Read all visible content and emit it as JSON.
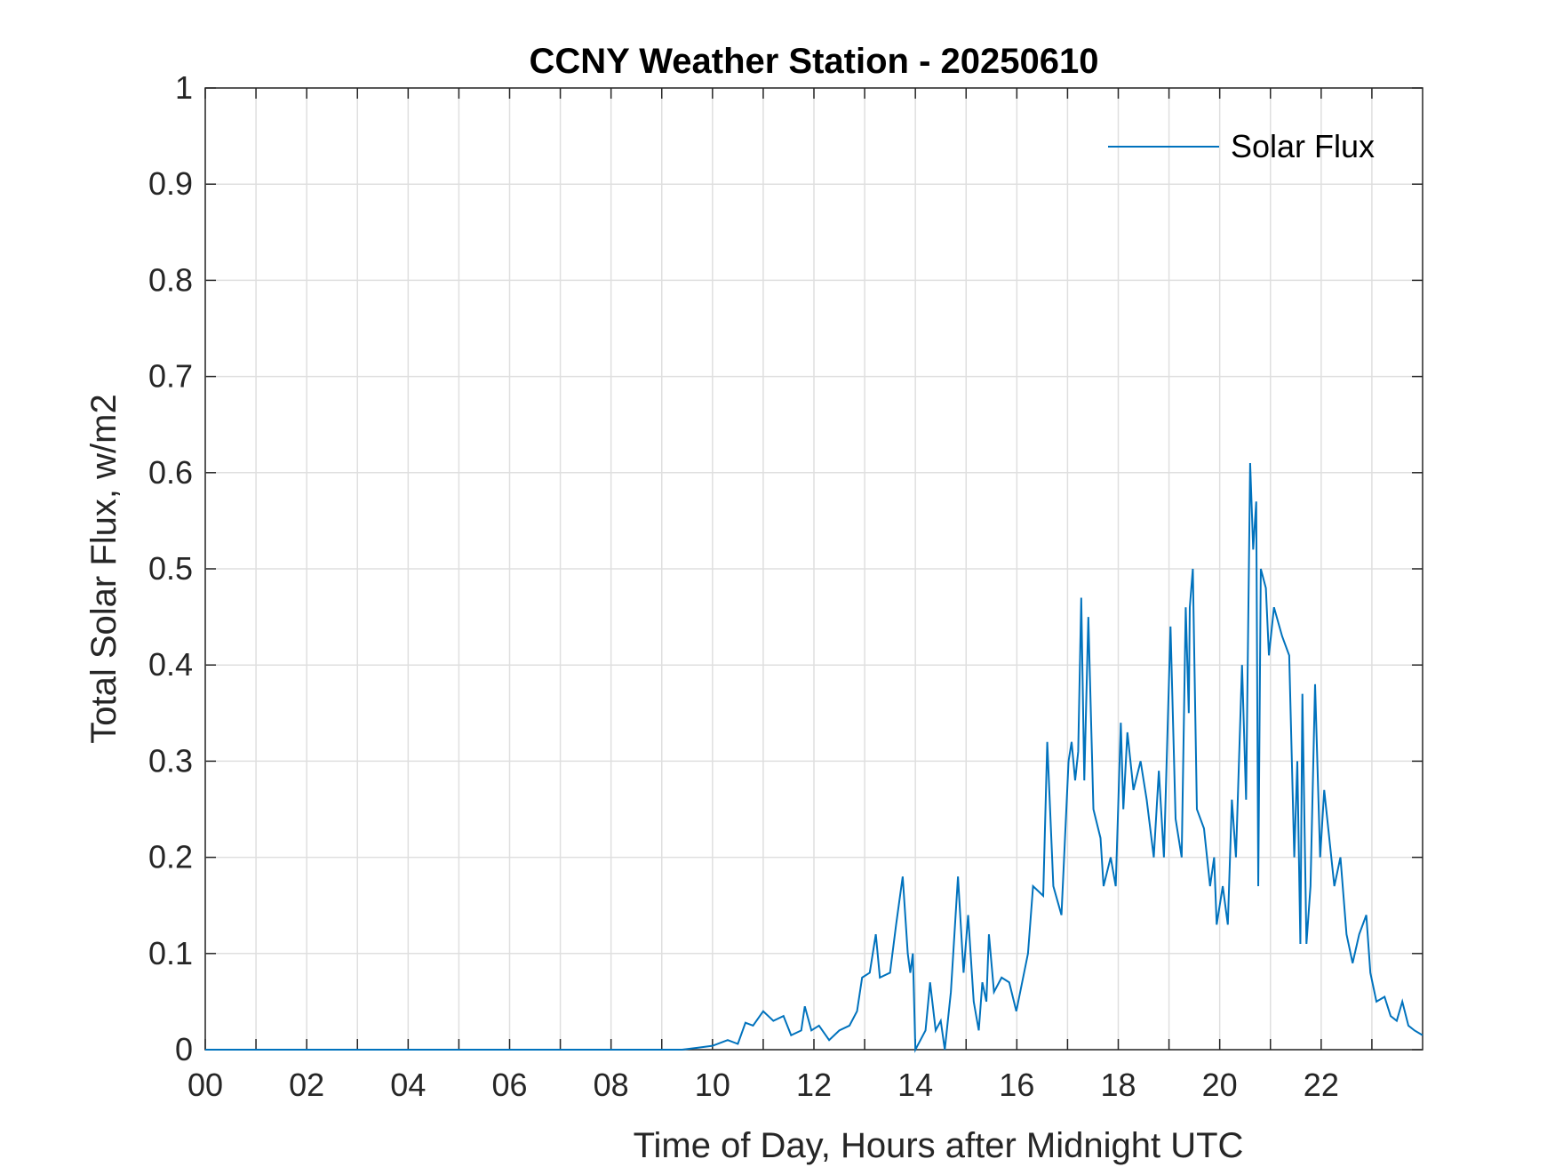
{
  "chart_data": {
    "type": "line",
    "title": "CCNY Weather Station - 20250610",
    "xlabel": "Time of Day, Hours after Midnight UTC",
    "ylabel": "Total Solar Flux, w/m2",
    "xlim": [
      0,
      24
    ],
    "ylim": [
      0,
      1
    ],
    "xticks": [
      {
        "value": 0,
        "label": "00"
      },
      {
        "value": 2,
        "label": "02"
      },
      {
        "value": 4,
        "label": "04"
      },
      {
        "value": 6,
        "label": "06"
      },
      {
        "value": 8,
        "label": "08"
      },
      10,
      12,
      14,
      16,
      18,
      20,
      22
    ],
    "xminorticks": [
      1,
      3,
      5,
      7,
      9,
      11,
      13,
      15,
      17,
      19,
      21,
      23
    ],
    "yticks": [
      0,
      0.1,
      0.2,
      0.3,
      0.4,
      0.5,
      0.6,
      0.7,
      0.8,
      0.9,
      1
    ],
    "grid": true,
    "legend": "upper right",
    "series": [
      {
        "name": "Solar Flux",
        "color": "#0072bd",
        "x": [
          0,
          9.4,
          9.7,
          10.0,
          10.3,
          10.5,
          10.65,
          10.8,
          11.0,
          11.2,
          11.4,
          11.55,
          11.75,
          11.82,
          11.95,
          12.1,
          12.3,
          12.5,
          12.7,
          12.85,
          12.95,
          13.1,
          13.22,
          13.3,
          13.5,
          13.62,
          13.75,
          13.85,
          13.9,
          13.95,
          14.0,
          14.1,
          14.2,
          14.29,
          14.4,
          14.5,
          14.58,
          14.7,
          14.84,
          14.95,
          15.04,
          15.15,
          15.25,
          15.32,
          15.4,
          15.45,
          15.55,
          15.7,
          15.85,
          15.99,
          16.22,
          16.32,
          16.52,
          16.6,
          16.72,
          16.88,
          17.02,
          17.08,
          17.15,
          17.21,
          17.27,
          17.33,
          17.41,
          17.51,
          17.65,
          17.71,
          17.85,
          17.95,
          18.05,
          18.1,
          18.18,
          18.3,
          18.44,
          18.56,
          18.7,
          18.8,
          18.9,
          19.03,
          19.13,
          19.25,
          19.33,
          19.39,
          19.41,
          19.47,
          19.55,
          19.69,
          19.81,
          19.89,
          19.94,
          20.06,
          20.16,
          20.24,
          20.32,
          20.44,
          20.52,
          20.6,
          20.66,
          20.72,
          20.76,
          20.81,
          20.91,
          20.97,
          21.07,
          21.23,
          21.37,
          21.47,
          21.53,
          21.59,
          21.63,
          21.71,
          21.79,
          21.88,
          21.98,
          22.06,
          22.14,
          22.26,
          22.38,
          22.5,
          22.62,
          22.75,
          22.89,
          22.97,
          23.09,
          23.25,
          23.37,
          23.49,
          23.6,
          23.72,
          23.84,
          24
        ],
        "values": [
          0,
          0,
          0.002,
          0.004,
          0.01,
          0.006,
          0.028,
          0.025,
          0.04,
          0.03,
          0.035,
          0.015,
          0.02,
          0.045,
          0.02,
          0.025,
          0.01,
          0.02,
          0.025,
          0.04,
          0.075,
          0.08,
          0.12,
          0.075,
          0.08,
          0.13,
          0.18,
          0.1,
          0.08,
          0.1,
          0.0,
          0.01,
          0.02,
          0.07,
          0.02,
          0.03,
          0.0,
          0.06,
          0.18,
          0.08,
          0.14,
          0.05,
          0.02,
          0.07,
          0.05,
          0.12,
          0.06,
          0.075,
          0.07,
          0.04,
          0.1,
          0.17,
          0.16,
          0.32,
          0.17,
          0.14,
          0.3,
          0.32,
          0.28,
          0.31,
          0.47,
          0.28,
          0.45,
          0.25,
          0.22,
          0.17,
          0.2,
          0.17,
          0.34,
          0.25,
          0.33,
          0.27,
          0.3,
          0.26,
          0.2,
          0.29,
          0.2,
          0.44,
          0.24,
          0.2,
          0.46,
          0.35,
          0.46,
          0.5,
          0.25,
          0.23,
          0.17,
          0.2,
          0.13,
          0.17,
          0.13,
          0.26,
          0.2,
          0.4,
          0.26,
          0.61,
          0.52,
          0.57,
          0.17,
          0.5,
          0.48,
          0.41,
          0.46,
          0.43,
          0.41,
          0.2,
          0.3,
          0.11,
          0.37,
          0.11,
          0.17,
          0.38,
          0.2,
          0.27,
          0.23,
          0.17,
          0.2,
          0.12,
          0.09,
          0.12,
          0.14,
          0.08,
          0.05,
          0.055,
          0.035,
          0.03,
          0.05,
          0.025,
          0.02,
          0.015
        ]
      }
    ]
  }
}
